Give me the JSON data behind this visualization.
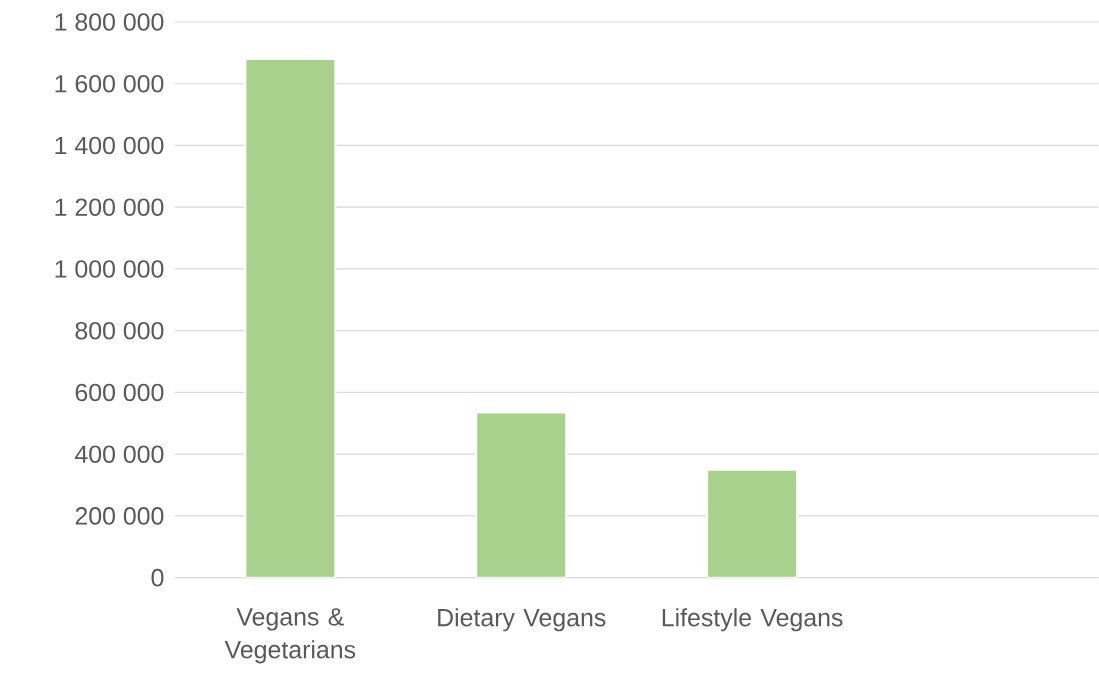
{
  "chart_data": {
    "type": "bar",
    "categories": [
      "Vegans & Vegetarians",
      "Dietary Vegans",
      "Lifestyle Vegans",
      null
    ],
    "values": [
      1680000,
      535000,
      350000,
      null
    ],
    "color": "#a9d18e",
    "ylim": [
      0,
      1800000
    ],
    "yticks": [
      {
        "value": 0,
        "label": "0"
      },
      {
        "value": 200000,
        "label": "200 000"
      },
      {
        "value": 400000,
        "label": "400 000"
      },
      {
        "value": 600000,
        "label": "600 000"
      },
      {
        "value": 800000,
        "label": "800 000"
      },
      {
        "value": 1000000,
        "label": "1 000 000"
      },
      {
        "value": 1200000,
        "label": "1 200 000"
      },
      {
        "value": 1400000,
        "label": "1 400 000"
      },
      {
        "value": 1600000,
        "label": "1 600 000"
      },
      {
        "value": 1800000,
        "label": "1 800 000"
      }
    ],
    "grid": "y"
  }
}
